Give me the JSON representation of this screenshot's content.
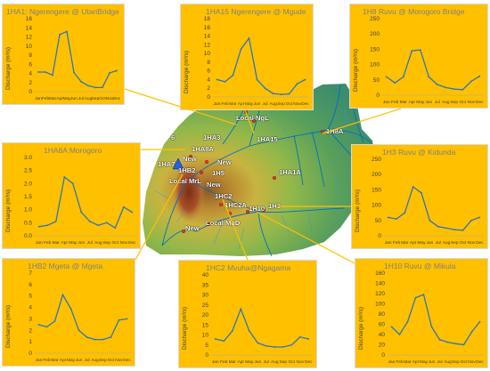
{
  "colors": {
    "panel_bg": "#FFC000",
    "line": "#2E75B6",
    "connector": "#FFC000",
    "river": "#0070C0",
    "station_dot": "#E03C2B"
  },
  "map": {
    "labels": [
      {
        "id": "local-ngl",
        "text": "Local NgL"
      },
      {
        "id": "1ha15",
        "text": "1HA15"
      },
      {
        "id": "1h8a",
        "text": "1H8A"
      },
      {
        "id": "six",
        "text": "6"
      },
      {
        "id": "1ha3",
        "text": "1HA3"
      },
      {
        "id": "1ha8a",
        "text": "1HA8A"
      },
      {
        "id": "1ha7",
        "text": "1HA7"
      },
      {
        "id": "new-1",
        "text": "New"
      },
      {
        "id": "1hb2",
        "text": "1HB2"
      },
      {
        "id": "new-2",
        "text": "New"
      },
      {
        "id": "1h5",
        "text": "1H5"
      },
      {
        "id": "local-mrl",
        "text": "Local MrL"
      },
      {
        "id": "new-3",
        "text": "New"
      },
      {
        "id": "1ha1a",
        "text": "1HA1A"
      },
      {
        "id": "1hc2",
        "text": "1HC2"
      },
      {
        "id": "1hc2a",
        "text": "1HC2A"
      },
      {
        "id": "1h10",
        "text": "1H10"
      },
      {
        "id": "1h3",
        "text": "1H3"
      },
      {
        "id": "local-mgd",
        "text": "Local MgD"
      },
      {
        "id": "new-4",
        "text": "New"
      }
    ]
  },
  "chart_data": [
    {
      "type": "line",
      "title": "1HA1: Ngerengere @ UtariBridge",
      "ylabel": "Discharge (m³/s)",
      "categories": [
        "Jan",
        "Feb",
        "Mar",
        "Apr",
        "May",
        "Jun",
        "Jul",
        "Aug",
        "Sep",
        "Oct",
        "Nov",
        "Dec"
      ],
      "values": [
        4.3,
        4.3,
        3.6,
        12.5,
        13.2,
        4.2,
        2.2,
        1.3,
        0.9,
        0.9,
        4.1,
        4.6
      ],
      "ylim": [
        0,
        16
      ],
      "yticks": [
        "0",
        "2",
        "4",
        "6",
        "8",
        "10",
        "12",
        "14",
        "16"
      ]
    },
    {
      "type": "line",
      "title": "1HA15 Ngerengere @ Mgude",
      "ylabel": "Discharge (m³/s)",
      "categories": [
        "Jan",
        "Feb",
        "Mar",
        "Apr",
        "May",
        "Jun",
        "Jul",
        "Aug",
        "Sep",
        "Oct",
        "Nov",
        "Dec"
      ],
      "values": [
        4,
        3.5,
        5,
        11,
        13.5,
        4,
        2,
        0.8,
        0.6,
        0.7,
        3,
        4
      ],
      "ylim": [
        0,
        18
      ],
      "yticks": [
        "0",
        "2",
        "4",
        "6",
        "8",
        "10",
        "12",
        "14",
        "16",
        "18"
      ]
    },
    {
      "type": "line",
      "title": "1H8 Ruvu @ Morogoro Bridge",
      "ylabel": "Discharge (m³/s)",
      "categories": [
        "Jan",
        "Feb",
        "Mar",
        "Apr",
        "May",
        "Jun",
        "Jul",
        "Aug",
        "Sep",
        "Oct",
        "Nov",
        "Dec"
      ],
      "values": [
        60,
        40,
        60,
        145,
        148,
        60,
        35,
        25,
        20,
        18,
        45,
        62
      ],
      "ylim": [
        0,
        250
      ],
      "yticks": [
        "0",
        "50",
        "100",
        "150",
        "200",
        "250"
      ]
    },
    {
      "type": "line",
      "title": "1HA8A Morogoro",
      "ylabel": "Discharge (m³/s)",
      "categories": [
        "Jan",
        "Feb",
        "Mar",
        "Apr",
        "May",
        "Jun",
        "Jul",
        "Aug",
        "Sep",
        "Oct",
        "Nov",
        "Dec"
      ],
      "values": [
        0.35,
        0.4,
        0.55,
        2.25,
        2.0,
        0.9,
        0.55,
        0.4,
        0.5,
        0.3,
        1.1,
        0.9
      ],
      "ylim": [
        0,
        3.0
      ],
      "yticks": [
        "0.0",
        "0.5",
        "1.0",
        "1.5",
        "2.0",
        "2.5",
        "3.0"
      ]
    },
    {
      "type": "line",
      "title": "1H3 Ruvu @ Kidunda",
      "ylabel": "Discharge (m³/s)",
      "categories": [
        "Jan",
        "Feb",
        "Mar",
        "Apr",
        "May",
        "Jun",
        "Jul",
        "Aug",
        "Sep",
        "Oct",
        "Nov",
        "Dec"
      ],
      "values": [
        60,
        55,
        75,
        160,
        140,
        50,
        30,
        25,
        20,
        18,
        50,
        60
      ],
      "ylim": [
        0,
        250
      ],
      "yticks": [
        "0",
        "50",
        "100",
        "150",
        "200",
        "250"
      ]
    },
    {
      "type": "line",
      "title": "1HB2 Mgeta @ Mgeta",
      "ylabel": "Discharge (m³/s)",
      "categories": [
        "Jan",
        "Feb",
        "Mar",
        "Apr",
        "May",
        "Jun",
        "Jul",
        "Aug",
        "Sep",
        "Oct",
        "Nov",
        "Dec"
      ],
      "values": [
        2.5,
        2.3,
        2.8,
        5.1,
        3.9,
        2.0,
        1.4,
        1.2,
        1.2,
        1.4,
        2.9,
        3.0
      ],
      "ylim": [
        0,
        7
      ],
      "yticks": [
        "0",
        "1",
        "2",
        "3",
        "4",
        "5",
        "6",
        "7"
      ]
    },
    {
      "type": "line",
      "title": "1HC2 Mvuha@Ngagama",
      "ylabel": "Discharge (m³/s)",
      "categories": [
        "Jan",
        "Feb",
        "Mar",
        "Apr",
        "May",
        "Jun",
        "Jul",
        "Aug",
        "Sep",
        "Oct",
        "Nov",
        "Dec"
      ],
      "values": [
        8,
        7,
        12,
        23,
        12,
        6,
        4.5,
        4,
        4,
        5,
        9,
        8
      ],
      "ylim": [
        0,
        40
      ],
      "yticks": [
        "0",
        "5",
        "10",
        "15",
        "20",
        "25",
        "30",
        "35",
        "40"
      ]
    },
    {
      "type": "line",
      "title": "1H10 Ruvu @ Mikula",
      "ylabel": "Discharge (m³/s)",
      "categories": [
        "Jan",
        "Feb",
        "Mar",
        "Apr",
        "May",
        "Jun",
        "Jul",
        "Aug",
        "Sep",
        "Oct",
        "Nov",
        "Dec"
      ],
      "values": [
        55,
        40,
        65,
        112,
        118,
        55,
        30,
        25,
        22,
        20,
        45,
        65
      ],
      "ylim": [
        0,
        160
      ],
      "yticks": [
        "0",
        "20",
        "40",
        "60",
        "80",
        "100",
        "120",
        "140",
        "160"
      ]
    }
  ]
}
